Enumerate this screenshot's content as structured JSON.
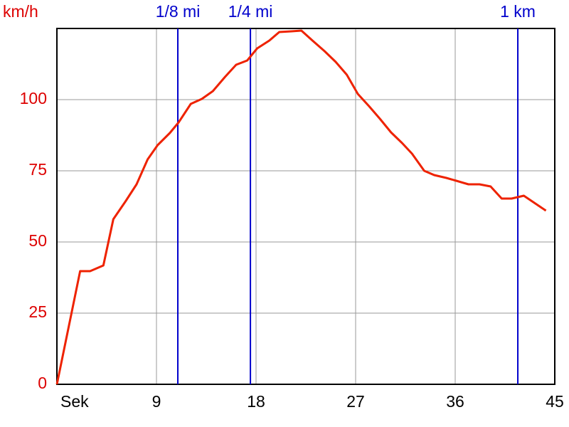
{
  "chart_data": {
    "type": "line",
    "y_label": "km/h",
    "x": [
      0,
      2.1,
      3.0,
      4.2,
      5.1,
      6.2,
      7.2,
      8.2,
      9.1,
      10.2,
      11.0,
      12.1,
      13.1,
      14.1,
      15.2,
      16.2,
      17.2,
      18.1,
      19.2,
      20.1,
      21.2,
      22.1,
      23.1,
      24.2,
      25.2,
      26.2,
      27.2,
      28.2,
      29.2,
      30.2,
      31.2,
      32.1,
      33.2,
      34.1,
      35.2,
      36.1,
      37.2,
      38.2,
      39.2,
      40.2,
      41.1,
      42.2,
      44.2
    ],
    "series": [
      {
        "name": "km/h",
        "color": "#ee2200",
        "values": [
          0,
          39.75,
          39.75,
          41.75,
          58,
          64.25,
          70.25,
          79,
          84,
          88.25,
          92,
          98.5,
          100.25,
          103,
          108,
          112.25,
          113.75,
          118,
          120.75,
          123.75,
          124,
          124.25,
          120.75,
          117,
          113.25,
          108.75,
          102,
          97.75,
          93.25,
          88.5,
          84.75,
          81,
          75,
          73.5,
          72.5,
          71.5,
          70.25,
          70.25,
          69.5,
          65.25,
          65.25,
          66.25,
          61
        ]
      }
    ],
    "xlim": [
      0,
      45
    ],
    "xticks": [
      {
        "value": 0,
        "label": "Sek"
      },
      9,
      18,
      27,
      36,
      45
    ],
    "ylim": [
      0,
      125
    ],
    "yticks": [
      0,
      25,
      50,
      75,
      100
    ],
    "grid": true,
    "markers": [
      {
        "label": "1/8 mi",
        "x": 10.93,
        "color": "#0000cc"
      },
      {
        "label": "1/4 mi",
        "x": 17.49,
        "color": "#0000cc"
      },
      {
        "label": "1 km",
        "x": 41.66,
        "color": "#0000cc"
      }
    ]
  }
}
